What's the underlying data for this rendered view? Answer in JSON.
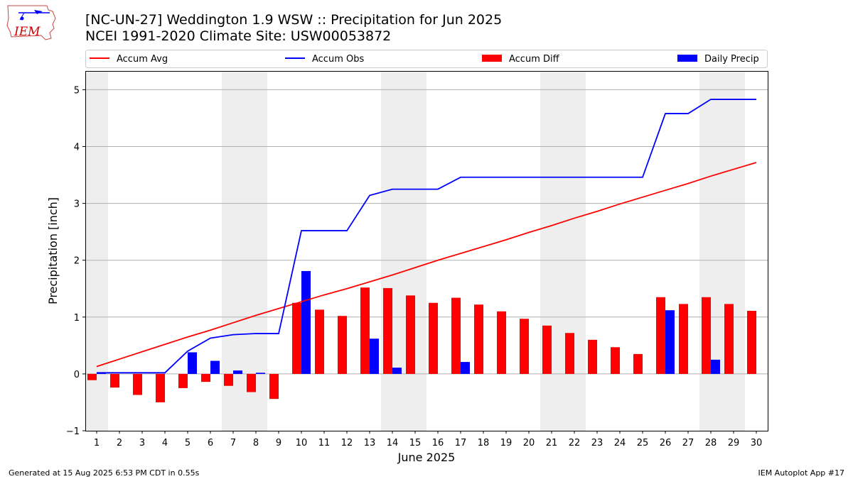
{
  "header": {
    "title_line1": "[NC-UN-27] Weddington 1.9 WSW :: Precipitation for Jun 2025",
    "title_line2": "NCEI 1991-2020 Climate Site: USW00053872"
  },
  "logo": {
    "text": "IEM"
  },
  "footer": {
    "generated": "Generated at 15 Aug 2025 6:53 PM CDT in 0.55s",
    "app": "IEM Autoplot App #17"
  },
  "colors": {
    "avg": "#ff0000",
    "obs": "#0000ff",
    "diff": "#ff0000",
    "daily": "#0000ff",
    "weekend": "#eeeeee"
  },
  "chart_data": {
    "type": "bar",
    "xlabel": "June 2025",
    "ylabel": "Precipitation [inch]",
    "ylim": [
      -1,
      5.33
    ],
    "yticks": [
      -1,
      0,
      1,
      2,
      3,
      4,
      5
    ],
    "ytick_labels": [
      "−1",
      "0",
      "1",
      "2",
      "3",
      "4",
      "5"
    ],
    "grid": "horizontal",
    "legend_placement": "top (above plot)",
    "x": [
      1,
      2,
      3,
      4,
      5,
      6,
      7,
      8,
      9,
      10,
      11,
      12,
      13,
      14,
      15,
      16,
      17,
      18,
      19,
      20,
      21,
      22,
      23,
      24,
      25,
      26,
      27,
      28,
      29,
      30
    ],
    "weekend_days": [
      1,
      7,
      8,
      14,
      15,
      21,
      22,
      28,
      29
    ],
    "series": [
      {
        "name": "Accum Avg",
        "kind": "line",
        "color": "#ff0000",
        "values": [
          0.13,
          0.26,
          0.39,
          0.52,
          0.65,
          0.77,
          0.9,
          1.03,
          1.15,
          1.27,
          1.39,
          1.5,
          1.62,
          1.74,
          1.87,
          2.0,
          2.12,
          2.24,
          2.36,
          2.49,
          2.61,
          2.74,
          2.86,
          2.99,
          3.11,
          3.23,
          3.35,
          3.48,
          3.6,
          3.72
        ]
      },
      {
        "name": "Accum Obs",
        "kind": "line",
        "color": "#0000ff",
        "values": [
          0.02,
          0.02,
          0.02,
          0.02,
          0.4,
          0.63,
          0.69,
          0.71,
          0.71,
          2.52,
          2.52,
          2.52,
          3.14,
          3.25,
          3.25,
          3.25,
          3.46,
          3.46,
          3.46,
          3.46,
          3.46,
          3.46,
          3.46,
          3.46,
          3.46,
          4.58,
          4.58,
          4.83,
          4.83,
          4.83
        ]
      },
      {
        "name": "Accum Diff",
        "kind": "bar",
        "color": "#ff0000",
        "values": [
          -0.11,
          -0.24,
          -0.37,
          -0.5,
          -0.25,
          -0.14,
          -0.21,
          -0.32,
          -0.44,
          1.25,
          1.13,
          1.02,
          1.52,
          1.51,
          1.38,
          1.25,
          1.34,
          1.22,
          1.1,
          0.97,
          0.85,
          0.72,
          0.6,
          0.47,
          0.35,
          1.35,
          1.23,
          1.35,
          1.23,
          1.11
        ]
      },
      {
        "name": "Daily Precip",
        "kind": "bar",
        "color": "#0000ff",
        "values": [
          0.02,
          0,
          0,
          0,
          0.38,
          0.23,
          0.06,
          0.02,
          0,
          1.81,
          0,
          0,
          0.62,
          0.11,
          0,
          0,
          0.21,
          0,
          0,
          0,
          0,
          0,
          0,
          0,
          0,
          1.12,
          0,
          0.25,
          0,
          0
        ]
      }
    ]
  }
}
